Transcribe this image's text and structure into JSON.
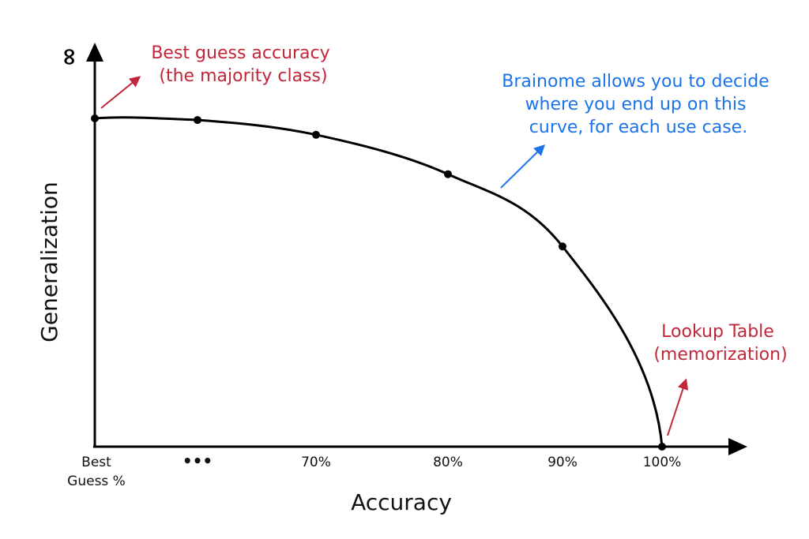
{
  "chart_data": {
    "type": "line",
    "xlabel": "Accuracy",
    "ylabel": "Generalization",
    "y_top_label": "∞",
    "x_ticks": [
      {
        "lines": [
          "Best",
          "Guess %"
        ]
      },
      {
        "lines": [
          "•••"
        ]
      },
      {
        "lines": [
          "70%"
        ]
      },
      {
        "lines": [
          "80%"
        ]
      },
      {
        "lines": [
          "90%"
        ]
      },
      {
        "lines": [
          "100%"
        ]
      }
    ],
    "points": [
      {
        "x": "Best Guess %",
        "y": 1.0
      },
      {
        "x": "•••",
        "y": 0.995
      },
      {
        "x": "70%",
        "y": 0.95
      },
      {
        "x": "80%",
        "y": 0.83
      },
      {
        "x": "90%",
        "y": 0.61
      },
      {
        "x": "100%",
        "y": 0.0
      }
    ],
    "annotations": [
      {
        "lines": [
          "Best guess accuracy",
          "(the majority class)"
        ],
        "color": "#c0273a"
      },
      {
        "lines": [
          "Brainome allows you to decide",
          "where you end up on this",
          "curve, for each use case."
        ],
        "color": "#1a73e8"
      },
      {
        "lines": [
          "Lookup Table",
          "(memorization)"
        ],
        "color": "#c0273a"
      }
    ],
    "colors": {
      "curve": "#000000",
      "axis": "#000000",
      "red": "#c0273a",
      "blue": "#1a73e8"
    }
  }
}
